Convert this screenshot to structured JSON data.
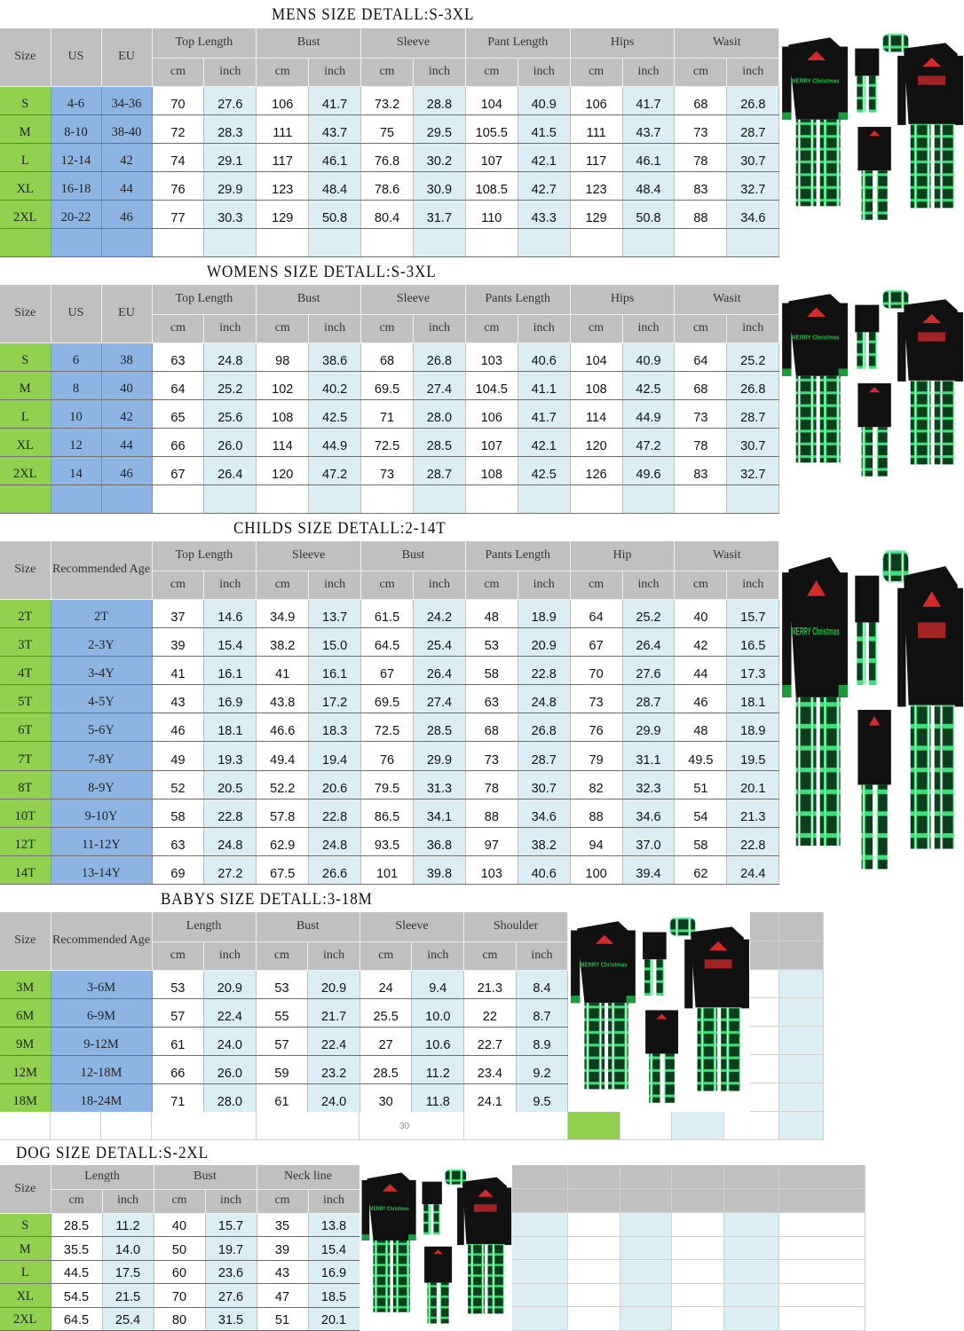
{
  "units": {
    "cm": "cm",
    "inch": "inch"
  },
  "colors": {
    "size_col": "#92d050",
    "us_col": "#8db4e2",
    "header": "#c0c0c0",
    "inch_col": "#daeef3"
  },
  "mens": {
    "title": "MENS SIZE DETALL:S-3XL",
    "fixed_headers": [
      "Size",
      "US",
      "EU"
    ],
    "groups": [
      "Top Length",
      "Bust",
      "Sleeve",
      "Pant Length",
      "Hips",
      "Wasit"
    ],
    "rows": [
      [
        "S",
        "4-6",
        "34-36",
        "70",
        "27.6",
        "106",
        "41.7",
        "73.2",
        "28.8",
        "104",
        "40.9",
        "106",
        "41.7",
        "68",
        "26.8"
      ],
      [
        "M",
        "8-10",
        "38-40",
        "72",
        "28.3",
        "111",
        "43.7",
        "75",
        "29.5",
        "105.5",
        "41.5",
        "111",
        "43.7",
        "73",
        "28.7"
      ],
      [
        "L",
        "12-14",
        "42",
        "74",
        "29.1",
        "117",
        "46.1",
        "76.8",
        "30.2",
        "107",
        "42.1",
        "117",
        "46.1",
        "78",
        "30.7"
      ],
      [
        "XL",
        "16-18",
        "44",
        "76",
        "29.9",
        "123",
        "48.4",
        "78.6",
        "30.9",
        "108.5",
        "42.7",
        "123",
        "48.4",
        "83",
        "32.7"
      ],
      [
        "2XL",
        "20-22",
        "46",
        "77",
        "30.3",
        "129",
        "50.8",
        "80.4",
        "31.7",
        "110",
        "43.3",
        "129",
        "50.8",
        "88",
        "34.6"
      ]
    ]
  },
  "womens": {
    "title": "WOMENS SIZE DETALL:S-3XL",
    "fixed_headers": [
      "Size",
      "US",
      "EU"
    ],
    "groups": [
      "Top Length",
      "Bust",
      "Sleeve",
      "Pants Length",
      "Hips",
      "Wasit"
    ],
    "rows": [
      [
        "S",
        "6",
        "38",
        "63",
        "24.8",
        "98",
        "38.6",
        "68",
        "26.8",
        "103",
        "40.6",
        "104",
        "40.9",
        "64",
        "25.2"
      ],
      [
        "M",
        "8",
        "40",
        "64",
        "25.2",
        "102",
        "40.2",
        "69.5",
        "27.4",
        "104.5",
        "41.1",
        "108",
        "42.5",
        "68",
        "26.8"
      ],
      [
        "L",
        "10",
        "42",
        "65",
        "25.6",
        "108",
        "42.5",
        "71",
        "28.0",
        "106",
        "41.7",
        "114",
        "44.9",
        "73",
        "28.7"
      ],
      [
        "XL",
        "12",
        "44",
        "66",
        "26.0",
        "114",
        "44.9",
        "72.5",
        "28.5",
        "107",
        "42.1",
        "120",
        "47.2",
        "78",
        "30.7"
      ],
      [
        "2XL",
        "14",
        "46",
        "67",
        "26.4",
        "120",
        "47.2",
        "73",
        "28.7",
        "108",
        "42.5",
        "126",
        "49.6",
        "83",
        "32.7"
      ]
    ]
  },
  "childs": {
    "title": "CHILDS SIZE DETALL:2-14T",
    "fixed_headers": [
      "Size",
      "Recommended Age"
    ],
    "groups": [
      "Top Length",
      "Sleeve",
      "Bust",
      "Pants Length",
      "Hip",
      "Wasit"
    ],
    "rows": [
      [
        "2T",
        "2T",
        "37",
        "14.6",
        "34.9",
        "13.7",
        "61.5",
        "24.2",
        "48",
        "18.9",
        "64",
        "25.2",
        "40",
        "15.7"
      ],
      [
        "3T",
        "2-3Y",
        "39",
        "15.4",
        "38.2",
        "15.0",
        "64.5",
        "25.4",
        "53",
        "20.9",
        "67",
        "26.4",
        "42",
        "16.5"
      ],
      [
        "4T",
        "3-4Y",
        "41",
        "16.1",
        "41",
        "16.1",
        "67",
        "26.4",
        "58",
        "22.8",
        "70",
        "27.6",
        "44",
        "17.3"
      ],
      [
        "5T",
        "4-5Y",
        "43",
        "16.9",
        "43.8",
        "17.2",
        "69.5",
        "27.4",
        "63",
        "24.8",
        "73",
        "28.7",
        "46",
        "18.1"
      ],
      [
        "6T",
        "5-6Y",
        "46",
        "18.1",
        "46.6",
        "18.3",
        "72.5",
        "28.5",
        "68",
        "26.8",
        "76",
        "29.9",
        "48",
        "18.9"
      ],
      [
        "7T",
        "7-8Y",
        "49",
        "19.3",
        "49.4",
        "19.4",
        "76",
        "29.9",
        "73",
        "28.7",
        "79",
        "31.1",
        "49.5",
        "19.5"
      ],
      [
        "8T",
        "8-9Y",
        "52",
        "20.5",
        "52.2",
        "20.6",
        "79.5",
        "31.3",
        "78",
        "30.7",
        "82",
        "32.3",
        "51",
        "20.1"
      ],
      [
        "10T",
        "9-10Y",
        "58",
        "22.8",
        "57.8",
        "22.8",
        "86.5",
        "34.1",
        "88",
        "34.6",
        "88",
        "34.6",
        "54",
        "21.3"
      ],
      [
        "12T",
        "11-12Y",
        "63",
        "24.8",
        "62.9",
        "24.8",
        "93.5",
        "36.8",
        "97",
        "38.2",
        "94",
        "37.0",
        "58",
        "22.8"
      ],
      [
        "14T",
        "13-14Y",
        "69",
        "27.2",
        "67.5",
        "26.6",
        "101",
        "39.8",
        "103",
        "40.6",
        "100",
        "39.4",
        "62",
        "24.4"
      ]
    ]
  },
  "babys": {
    "title": "BABYS SIZE DETALL:3-18M",
    "fixed_headers": [
      "Size",
      "Recommended Age"
    ],
    "groups": [
      "Length",
      "Bust",
      "Sleeve",
      "Shoulder"
    ],
    "rows": [
      [
        "3M",
        "3-6M",
        "53",
        "20.9",
        "53",
        "20.9",
        "24",
        "9.4",
        "21.3",
        "8.4"
      ],
      [
        "6M",
        "6-9M",
        "57",
        "22.4",
        "55",
        "21.7",
        "25.5",
        "10.0",
        "22",
        "8.7"
      ],
      [
        "9M",
        "9-12M",
        "61",
        "24.0",
        "57",
        "22.4",
        "27",
        "10.6",
        "22.7",
        "8.9"
      ],
      [
        "12M",
        "12-18M",
        "66",
        "26.0",
        "59",
        "23.2",
        "28.5",
        "11.2",
        "23.4",
        "9.2"
      ],
      [
        "18M",
        "18-24M",
        "71",
        "28.0",
        "61",
        "24.0",
        "30",
        "11.8",
        "24.1",
        "9.5"
      ]
    ],
    "footer_note": "30"
  },
  "dog": {
    "title": "DOG SIZE DETALL:S-2XL",
    "fixed_headers": [
      "Size"
    ],
    "groups": [
      "Length",
      "Bust",
      "Neck line"
    ],
    "rows": [
      [
        "S",
        "28.5",
        "11.2",
        "40",
        "15.7",
        "35",
        "13.8"
      ],
      [
        "M",
        "35.5",
        "14.0",
        "50",
        "19.7",
        "39",
        "15.4"
      ],
      [
        "L",
        "44.5",
        "17.5",
        "60",
        "23.6",
        "43",
        "16.9"
      ],
      [
        "XL",
        "54.5",
        "21.5",
        "70",
        "27.6",
        "47",
        "18.5"
      ],
      [
        "2XL",
        "64.5",
        "25.4",
        "80",
        "31.5",
        "51",
        "20.1"
      ]
    ]
  },
  "product_image": {
    "icon": "family-christmas-pajama-set-image",
    "shirt_text": "MERRY Christmas"
  }
}
